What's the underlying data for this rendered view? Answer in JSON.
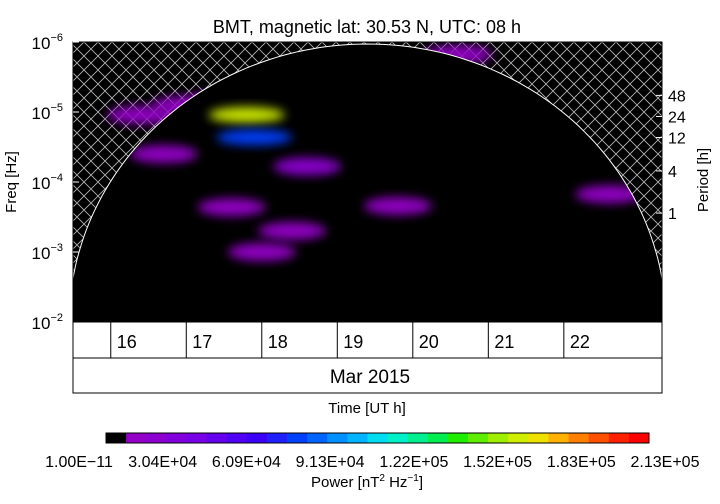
{
  "chart_data": {
    "type": "heatmap",
    "title": "BMT, magnetic lat:   30.53 N, UTC:  08 h",
    "ylabel_left": "Freq [Hz]",
    "ylabel_right": "Period [h]",
    "xlabel": "Time [UT h]",
    "month_label": "Mar 2015",
    "x_range": [
      15.5,
      23.3
    ],
    "day_ticks": [
      "16",
      "17",
      "18",
      "19",
      "20",
      "21",
      "22"
    ],
    "freq_ticks": [
      {
        "mant": "10",
        "exp": "−6",
        "value": 1e-06
      },
      {
        "mant": "10",
        "exp": "−5",
        "value": 1e-05
      },
      {
        "mant": "10",
        "exp": "−4",
        "value": 0.0001
      },
      {
        "mant": "10",
        "exp": "−3",
        "value": 0.001
      },
      {
        "mant": "10",
        "exp": "−2",
        "value": 0.01
      }
    ],
    "period_ticks": [
      "48",
      "24",
      "12",
      "4",
      "1"
    ],
    "colorbar": {
      "label": "Power [nT² Hz⁻¹]",
      "label_main": "Power [nT",
      "label_sup1": "2",
      "label_mid": " Hz",
      "label_sup2": "−1",
      "label_end": "]",
      "ticks": [
        "1.00E−11",
        "3.04E+04",
        "6.09E+04",
        "9.13E+04",
        "1.22E+05",
        "1.52E+05",
        "1.83E+05",
        "2.13E+05"
      ],
      "colors": [
        "#000000",
        "#9400c8",
        "#8c00d0",
        "#8200dc",
        "#7800e6",
        "#6400ee",
        "#5000f5",
        "#3c00fa",
        "#2020ff",
        "#0040ff",
        "#0064ff",
        "#0090ff",
        "#00b4ff",
        "#00dcf0",
        "#00f0c8",
        "#00f090",
        "#00ee50",
        "#20ee00",
        "#60ee00",
        "#a0ee00",
        "#d0ee00",
        "#f0e000",
        "#ffb000",
        "#ff8000",
        "#ff5000",
        "#ff2000",
        "#ff0000"
      ]
    },
    "blobs": [
      {
        "x": 16.4,
        "f": 1.1e-05,
        "level": 1
      },
      {
        "x": 17.0,
        "f": 8e-06,
        "level": 1
      },
      {
        "x": 17.5,
        "f": 7e-06,
        "level": 1
      },
      {
        "x": 18.2,
        "f": 1e-05,
        "level": 1
      },
      {
        "x": 19.0,
        "f": 5e-06,
        "level": 1
      },
      {
        "x": 19.8,
        "f": 3e-06,
        "level": 1
      },
      {
        "x": 20.6,
        "f": 1.5e-06,
        "level": 1
      },
      {
        "x": 17.8,
        "f": 1.1e-05,
        "level": 20
      },
      {
        "x": 17.9,
        "f": 2.3e-05,
        "level": 9
      },
      {
        "x": 18.6,
        "f": 6e-05,
        "level": 2
      },
      {
        "x": 16.7,
        "f": 4e-05,
        "level": 1
      },
      {
        "x": 17.6,
        "f": 0.00023,
        "level": 1
      },
      {
        "x": 18.4,
        "f": 0.0005,
        "level": 1
      },
      {
        "x": 19.8,
        "f": 0.00022,
        "level": 1
      },
      {
        "x": 18.0,
        "f": 0.001,
        "level": 1
      },
      {
        "x": 22.6,
        "f": 0.00015,
        "level": 1
      }
    ]
  }
}
